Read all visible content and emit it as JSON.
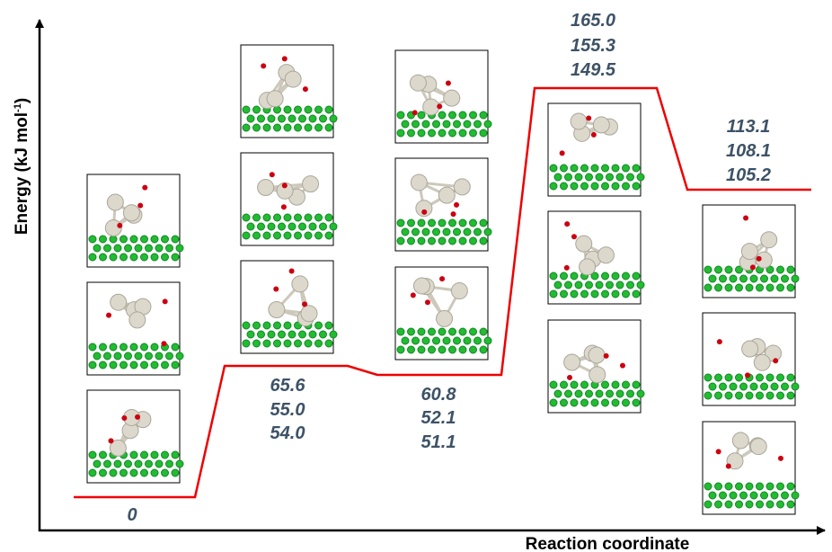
{
  "axes": {
    "y_label": {
      "text": "Energy (kJ mol",
      "superscript": "-1",
      "suffix": ")"
    },
    "x_label": "Reaction coordinate"
  },
  "states": [
    {
      "energies": [
        "0"
      ]
    },
    {
      "energies": [
        "65.6",
        "55.0",
        "54.0"
      ]
    },
    {
      "energies": [
        "60.8",
        "52.1",
        "51.1"
      ]
    },
    {
      "energies": [
        "165.0",
        "155.3",
        "149.5"
      ]
    },
    {
      "energies": [
        "113.1",
        "108.1",
        "105.2"
      ]
    }
  ]
}
